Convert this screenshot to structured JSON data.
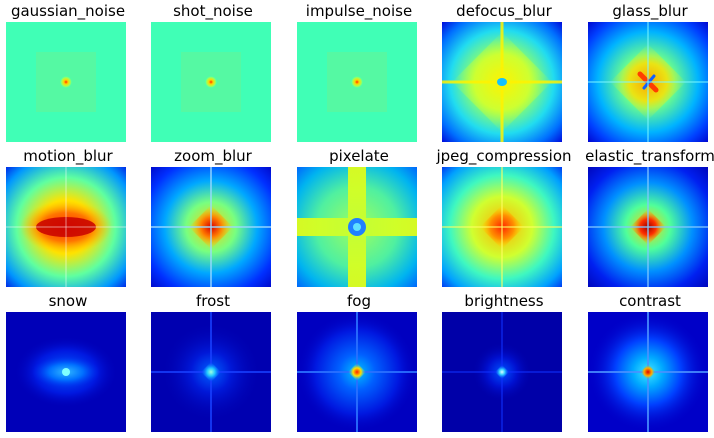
{
  "panels": [
    {
      "title": "gaussian_noise",
      "style": "noise"
    },
    {
      "title": "shot_noise",
      "style": "noise"
    },
    {
      "title": "impulse_noise",
      "style": "noise"
    },
    {
      "title": "defocus_blur",
      "style": "defocus"
    },
    {
      "title": "glass_blur",
      "style": "glass"
    },
    {
      "title": "motion_blur",
      "style": "motion"
    },
    {
      "title": "zoom_blur",
      "style": "zoom"
    },
    {
      "title": "pixelate",
      "style": "pixelate"
    },
    {
      "title": "jpeg_compression",
      "style": "jpeg"
    },
    {
      "title": "elastic_transform",
      "style": "elastic"
    },
    {
      "title": "snow",
      "style": "snow"
    },
    {
      "title": "frost",
      "style": "frost"
    },
    {
      "title": "fog",
      "style": "fog"
    },
    {
      "title": "brightness",
      "style": "brightness"
    },
    {
      "title": "contrast",
      "style": "contrast"
    }
  ],
  "colormap": "jet"
}
